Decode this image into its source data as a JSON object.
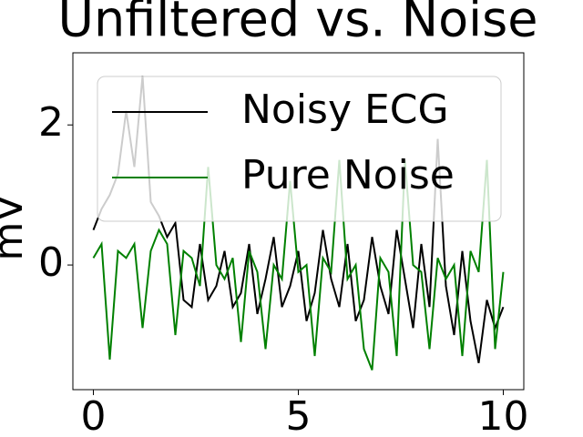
{
  "chart_data": {
    "type": "line",
    "title": "Unfiltered vs. Noise",
    "y_label": "mV",
    "x": [
      0,
      0.2,
      0.4,
      0.6,
      0.8,
      1.0,
      1.2,
      1.4,
      1.6,
      1.8,
      2.0,
      2.2,
      2.4,
      2.6,
      2.8,
      3.0,
      3.2,
      3.4,
      3.6,
      3.8,
      4.0,
      4.2,
      4.4,
      4.6,
      4.8,
      5.0,
      5.2,
      5.4,
      5.6,
      5.8,
      6.0,
      6.2,
      6.4,
      6.6,
      6.8,
      7.0,
      7.2,
      7.4,
      7.6,
      7.8,
      8.0,
      8.2,
      8.4,
      8.6,
      8.8,
      9.0,
      9.2,
      9.4,
      9.6,
      9.8,
      10.0
    ],
    "series": [
      {
        "name": "Noisy ECG",
        "color": "#000000",
        "values": [
          0.5,
          0.8,
          1.0,
          1.3,
          2.2,
          1.4,
          2.7,
          0.9,
          0.7,
          0.4,
          0.6,
          -0.5,
          -0.6,
          0.3,
          -0.5,
          -0.3,
          0.2,
          -0.6,
          -0.4,
          0.3,
          -0.7,
          -0.2,
          0.4,
          -0.6,
          -0.3,
          0.2,
          -0.8,
          -0.4,
          0.5,
          -0.2,
          -0.6,
          0.3,
          -0.8,
          -0.5,
          0.4,
          -0.3,
          -0.7,
          0.5,
          -0.2,
          -0.9,
          0.3,
          -0.6,
          1.8,
          -0.3,
          -1.0,
          0.2,
          -0.8,
          -1.4,
          -0.5,
          -0.9,
          -0.6
        ]
      },
      {
        "name": "Pure Noise",
        "color": "#008000",
        "values": [
          0.1,
          0.3,
          -1.35,
          0.2,
          0.1,
          0.3,
          -0.9,
          0.2,
          0.5,
          0.3,
          -1.0,
          0.2,
          0.1,
          -0.3,
          1.4,
          0.0,
          -0.2,
          0.1,
          -1.1,
          0.2,
          -0.1,
          -1.2,
          0.0,
          -0.2,
          1.2,
          -0.1,
          0.0,
          -1.3,
          0.1,
          -0.1,
          1.5,
          -0.2,
          0.0,
          -1.2,
          -1.5,
          0.1,
          -0.1,
          -1.3,
          1.5,
          0.0,
          -0.1,
          -1.2,
          0.1,
          -0.2,
          0.0,
          -1.3,
          0.2,
          -0.1,
          1.5,
          -1.2,
          -0.1
        ]
      }
    ],
    "xlim": [
      -0.5,
      10.5
    ],
    "xticks": [
      0,
      5,
      10
    ],
    "ylim": [
      -1.78,
      3.03
    ],
    "yticks": [
      0,
      2
    ],
    "legend": "upper left",
    "grid": false
  }
}
